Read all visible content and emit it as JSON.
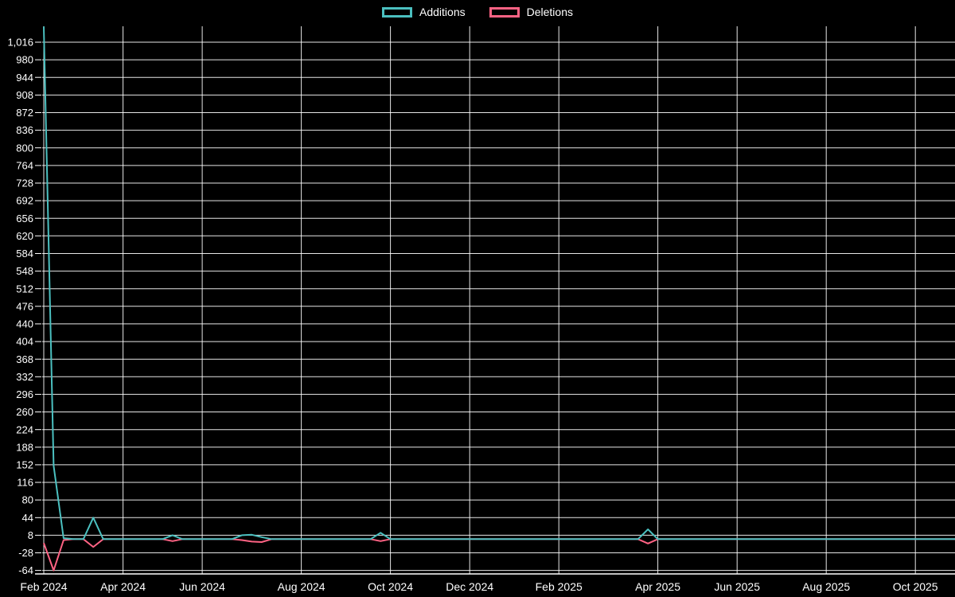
{
  "legend": {
    "items": [
      {
        "label": "Additions",
        "color": "#4bc0c0"
      },
      {
        "label": "Deletions",
        "color": "#ff6384"
      }
    ]
  },
  "chart_data": {
    "type": "line",
    "title": "",
    "background": "#000000",
    "grid": {
      "show": true,
      "color": "#ffffff"
    },
    "legend_position": "top-center",
    "y_axis": {
      "tick_labels": [
        "1,016",
        "980",
        "944",
        "908",
        "872",
        "836",
        "800",
        "764",
        "728",
        "692",
        "656",
        "620",
        "584",
        "548",
        "512",
        "476",
        "440",
        "404",
        "368",
        "332",
        "296",
        "260",
        "224",
        "188",
        "152",
        "116",
        "80",
        "44",
        "8",
        "-28",
        "-64"
      ],
      "tick_values": [
        1016,
        980,
        944,
        908,
        872,
        836,
        800,
        764,
        728,
        692,
        656,
        620,
        584,
        548,
        512,
        476,
        440,
        404,
        368,
        332,
        296,
        260,
        224,
        188,
        152,
        116,
        80,
        44,
        8,
        -28,
        -64
      ],
      "ylim": [
        -64,
        1048
      ]
    },
    "x_axis": {
      "unit": "week",
      "tick_labels": [
        "Feb 2024",
        "Apr 2024",
        "Jun 2024",
        "Aug 2024",
        "Oct 2024",
        "Dec 2024",
        "Feb 2025",
        "Apr 2025",
        "Jun 2025",
        "Aug 2025",
        "Oct 2025"
      ],
      "tick_week_indices": [
        0,
        8,
        16,
        26,
        35,
        43,
        52,
        62,
        70,
        79,
        88
      ]
    },
    "series": [
      {
        "name": "Additions",
        "color": "#4bc0c0",
        "values": [
          1048,
          150,
          2,
          0,
          0,
          44,
          0,
          0,
          0,
          0,
          0,
          0,
          0,
          8,
          0,
          0,
          0,
          0,
          0,
          0,
          8,
          9,
          4,
          0,
          0,
          0,
          0,
          0,
          0,
          0,
          0,
          0,
          0,
          0,
          13,
          0,
          0,
          0,
          0,
          0,
          0,
          0,
          0,
          0,
          0,
          0,
          0,
          0,
          0,
          0,
          0,
          0,
          0,
          0,
          0,
          0,
          0,
          0,
          0,
          0,
          0,
          20,
          0,
          0,
          0,
          0,
          0,
          0,
          0,
          0,
          0,
          0,
          0,
          0,
          0,
          0,
          0,
          0,
          0,
          0,
          0,
          0,
          0,
          0,
          0,
          0,
          0,
          0,
          0,
          0,
          0,
          0,
          0
        ]
      },
      {
        "name": "Deletions",
        "color": "#ff6384",
        "values": [
          -8,
          -64,
          -2,
          0,
          0,
          -16,
          0,
          0,
          0,
          0,
          0,
          0,
          0,
          -4,
          0,
          0,
          0,
          0,
          0,
          0,
          -2,
          -5,
          -6,
          0,
          0,
          0,
          0,
          0,
          0,
          0,
          0,
          0,
          0,
          0,
          -4,
          0,
          0,
          0,
          0,
          0,
          0,
          0,
          0,
          0,
          0,
          0,
          0,
          0,
          0,
          0,
          0,
          0,
          0,
          0,
          0,
          0,
          0,
          0,
          0,
          0,
          0,
          -9,
          0,
          0,
          0,
          0,
          0,
          0,
          0,
          0,
          0,
          0,
          0,
          0,
          0,
          0,
          0,
          0,
          0,
          0,
          0,
          0,
          0,
          0,
          0,
          0,
          0,
          0,
          0,
          0,
          0,
          0,
          0
        ]
      }
    ]
  }
}
